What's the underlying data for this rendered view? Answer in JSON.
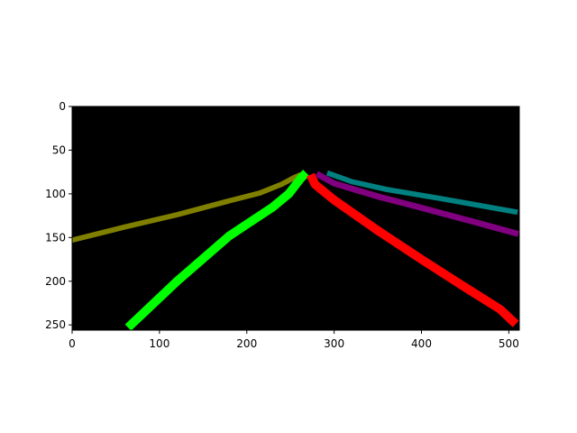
{
  "chart_data": {
    "type": "image",
    "title": "",
    "xlabel": "",
    "ylabel": "",
    "xlim": [
      0,
      512
    ],
    "ylim": [
      256,
      0
    ],
    "x_ticks": [
      0,
      100,
      200,
      300,
      400,
      500
    ],
    "y_ticks": [
      0,
      50,
      100,
      150,
      200,
      250
    ],
    "grid": false,
    "background_color": "#000000",
    "series": [
      {
        "color": "#808000",
        "width": 6,
        "points": [
          [
            0,
            153
          ],
          [
            60,
            138
          ],
          [
            120,
            124
          ],
          [
            180,
            108
          ],
          [
            215,
            99
          ],
          [
            240,
            89
          ],
          [
            255,
            81
          ],
          [
            262,
            78
          ]
        ]
      },
      {
        "color": "#00ff00",
        "width": 10,
        "points": [
          [
            64,
            253
          ],
          [
            120,
            200
          ],
          [
            180,
            148
          ],
          [
            230,
            115
          ],
          [
            248,
            100
          ],
          [
            262,
            82
          ],
          [
            268,
            76
          ]
        ]
      },
      {
        "color": "#ff0000",
        "width": 10,
        "points": [
          [
            273,
            78
          ],
          [
            278,
            89
          ],
          [
            300,
            107
          ],
          [
            350,
            142
          ],
          [
            400,
            175
          ],
          [
            450,
            207
          ],
          [
            490,
            232
          ],
          [
            508,
            249
          ]
        ]
      },
      {
        "color": "#800080",
        "width": 7,
        "points": [
          [
            280,
            77
          ],
          [
            300,
            88
          ],
          [
            350,
            103
          ],
          [
            400,
            116
          ],
          [
            460,
            132
          ],
          [
            511,
            146
          ]
        ]
      },
      {
        "color": "#008080",
        "width": 6,
        "points": [
          [
            292,
            76
          ],
          [
            320,
            86
          ],
          [
            360,
            95
          ],
          [
            420,
            105
          ],
          [
            470,
            114
          ],
          [
            510,
            121
          ]
        ]
      }
    ]
  }
}
